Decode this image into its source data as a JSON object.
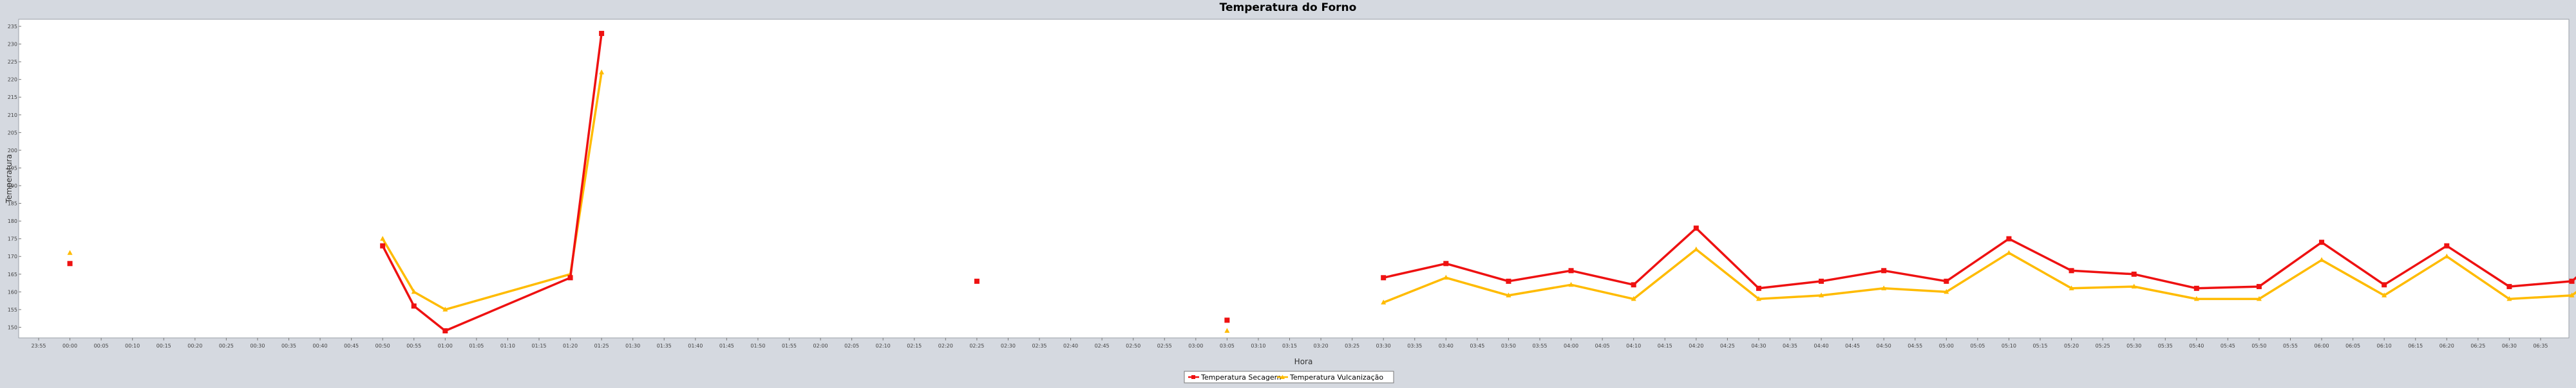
{
  "chart_data": {
    "type": "line",
    "title": "Temperatura do Forno",
    "xlabel": "Hora",
    "ylabel": "Temperatura",
    "ylim": [
      147,
      237
    ],
    "yticks": [
      150,
      155,
      160,
      165,
      170,
      175,
      180,
      185,
      190,
      195,
      200,
      205,
      210,
      215,
      220,
      225,
      230,
      235
    ],
    "x_tick_labels": [
      "23:55",
      "00:00",
      "00:05",
      "00:10",
      "00:15",
      "00:20",
      "00:25",
      "00:30",
      "00:35",
      "00:40",
      "00:45",
      "00:50",
      "00:55",
      "01:00",
      "01:05",
      "01:10",
      "01:15",
      "01:20",
      "01:25",
      "01:30",
      "01:35",
      "01:40",
      "01:45",
      "01:50",
      "01:55",
      "02:00",
      "02:05",
      "02:10",
      "02:15",
      "02:20",
      "02:25",
      "02:30",
      "02:35",
      "02:40",
      "02:45",
      "02:50",
      "02:55",
      "03:00",
      "03:05",
      "03:10",
      "03:15",
      "03:20",
      "03:25",
      "03:30",
      "03:35",
      "03:40",
      "03:45",
      "03:50",
      "03:55",
      "04:00",
      "04:05",
      "04:10",
      "04:15",
      "04:20",
      "04:25",
      "04:30",
      "04:35",
      "04:40",
      "04:45",
      "04:50",
      "04:55",
      "05:00",
      "05:05",
      "05:10",
      "05:15",
      "05:20",
      "05:25",
      "05:30",
      "05:35",
      "05:40",
      "05:45",
      "05:50",
      "05:55",
      "06:00",
      "06:05",
      "06:10",
      "06:15",
      "06:20",
      "06:25",
      "06:30",
      "06:35"
    ],
    "grid": false,
    "legend_position": "bottom-center",
    "series": [
      {
        "name": "Temperatura Secagem",
        "color": "#ee1111",
        "segments": [
          [
            [
              1,
              168
            ]
          ],
          [
            [
              11,
              173
            ],
            [
              12,
              156
            ],
            [
              13,
              149
            ],
            [
              17,
              164
            ],
            [
              18,
              233
            ]
          ],
          [
            [
              30,
              163
            ]
          ],
          [
            [
              38,
              152
            ]
          ],
          [
            [
              43,
              164
            ],
            [
              45,
              168
            ],
            [
              47,
              163
            ],
            [
              49,
              166
            ],
            [
              51,
              162
            ],
            [
              53,
              178
            ],
            [
              55,
              161
            ],
            [
              57,
              163
            ],
            [
              59,
              166
            ],
            [
              61,
              163
            ],
            [
              63,
              175
            ],
            [
              65,
              166
            ],
            [
              67,
              165
            ],
            [
              69,
              161
            ],
            [
              71,
              161.5
            ],
            [
              73,
              174
            ],
            [
              75,
              162
            ],
            [
              77,
              173
            ],
            [
              79,
              161.5
            ],
            [
              81,
              163
            ],
            [
              83,
              178
            ],
            [
              85,
              162
            ],
            [
              87,
              161.5
            ],
            [
              89,
              161.5
            ],
            [
              91,
              162
            ],
            [
              93,
              167
            ],
            [
              95,
              178
            ],
            [
              97,
              175
            ],
            [
              99,
              161.5
            ],
            [
              101,
              161.5
            ],
            [
              103,
              164
            ],
            [
              105,
              162
            ],
            [
              107,
              167
            ],
            [
              109,
              161.5
            ],
            [
              111,
              178
            ],
            [
              113,
              163
            ],
            [
              115,
              173
            ],
            [
              117,
              161.5
            ],
            [
              119,
              161.5
            ],
            [
              121,
              161.5
            ],
            [
              123,
              161.5
            ],
            [
              125,
              172
            ],
            [
              127,
              177
            ],
            [
              129,
              177
            ],
            [
              131,
              176
            ],
            [
              133,
              163
            ],
            [
              135,
              165
            ]
          ]
        ]
      },
      {
        "name": "Temperatura Vulcanização",
        "color": "#ffbb00",
        "segments": [
          [
            [
              1,
              171
            ]
          ],
          [
            [
              11,
              175
            ],
            [
              12,
              160
            ],
            [
              13,
              155
            ],
            [
              17,
              165
            ],
            [
              18,
              222
            ]
          ],
          [
            [
              38,
              149
            ]
          ],
          [
            [
              43,
              157
            ],
            [
              45,
              164
            ],
            [
              47,
              159
            ],
            [
              49,
              162
            ],
            [
              51,
              158
            ],
            [
              53,
              172
            ],
            [
              55,
              158
            ],
            [
              57,
              159
            ],
            [
              59,
              161
            ],
            [
              61,
              160
            ],
            [
              63,
              171
            ],
            [
              65,
              161
            ],
            [
              67,
              161.5
            ],
            [
              69,
              158
            ],
            [
              71,
              158
            ],
            [
              73,
              169
            ],
            [
              75,
              159
            ],
            [
              77,
              170
            ],
            [
              79,
              158
            ],
            [
              81,
              159
            ],
            [
              83,
              172
            ],
            [
              85,
              158
            ],
            [
              87,
              157.5
            ],
            [
              89,
              157
            ],
            [
              91,
              158
            ],
            [
              93,
              162
            ],
            [
              95,
              172
            ],
            [
              97,
              169
            ],
            [
              99,
              158
            ],
            [
              101,
              158
            ],
            [
              103,
              160
            ],
            [
              105,
              158
            ],
            [
              107,
              164
            ],
            [
              109,
              158
            ],
            [
              111,
              173
            ],
            [
              113,
              160
            ],
            [
              115,
              170
            ],
            [
              117,
              158
            ],
            [
              119,
              158
            ],
            [
              121,
              158
            ],
            [
              123,
              158
            ],
            [
              125,
              167
            ],
            [
              127,
              172
            ],
            [
              129,
              172
            ],
            [
              131,
              171
            ],
            [
              133,
              160
            ],
            [
              135,
              161
            ]
          ]
        ]
      }
    ]
  }
}
